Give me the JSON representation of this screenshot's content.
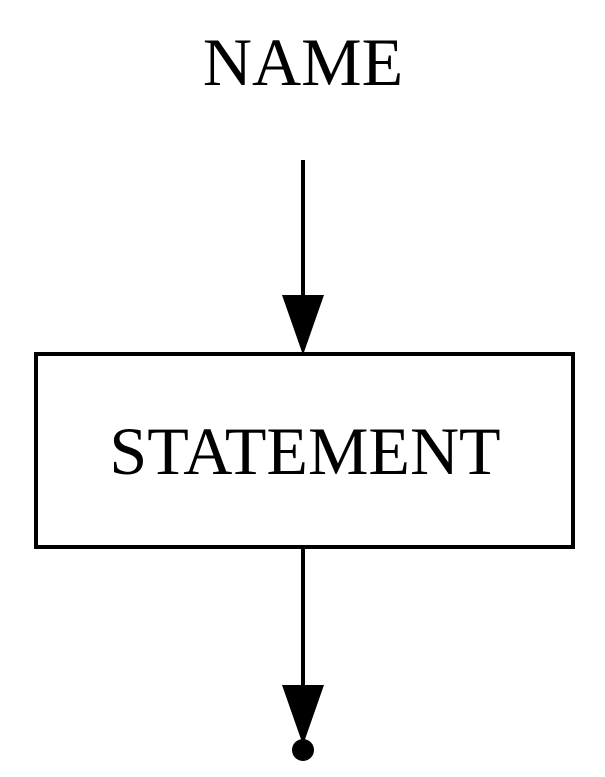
{
  "diagram": {
    "start_label": "NAME",
    "node_label": "STATEMENT"
  },
  "colors": {
    "stroke": "#000000",
    "background": "#ffffff"
  }
}
